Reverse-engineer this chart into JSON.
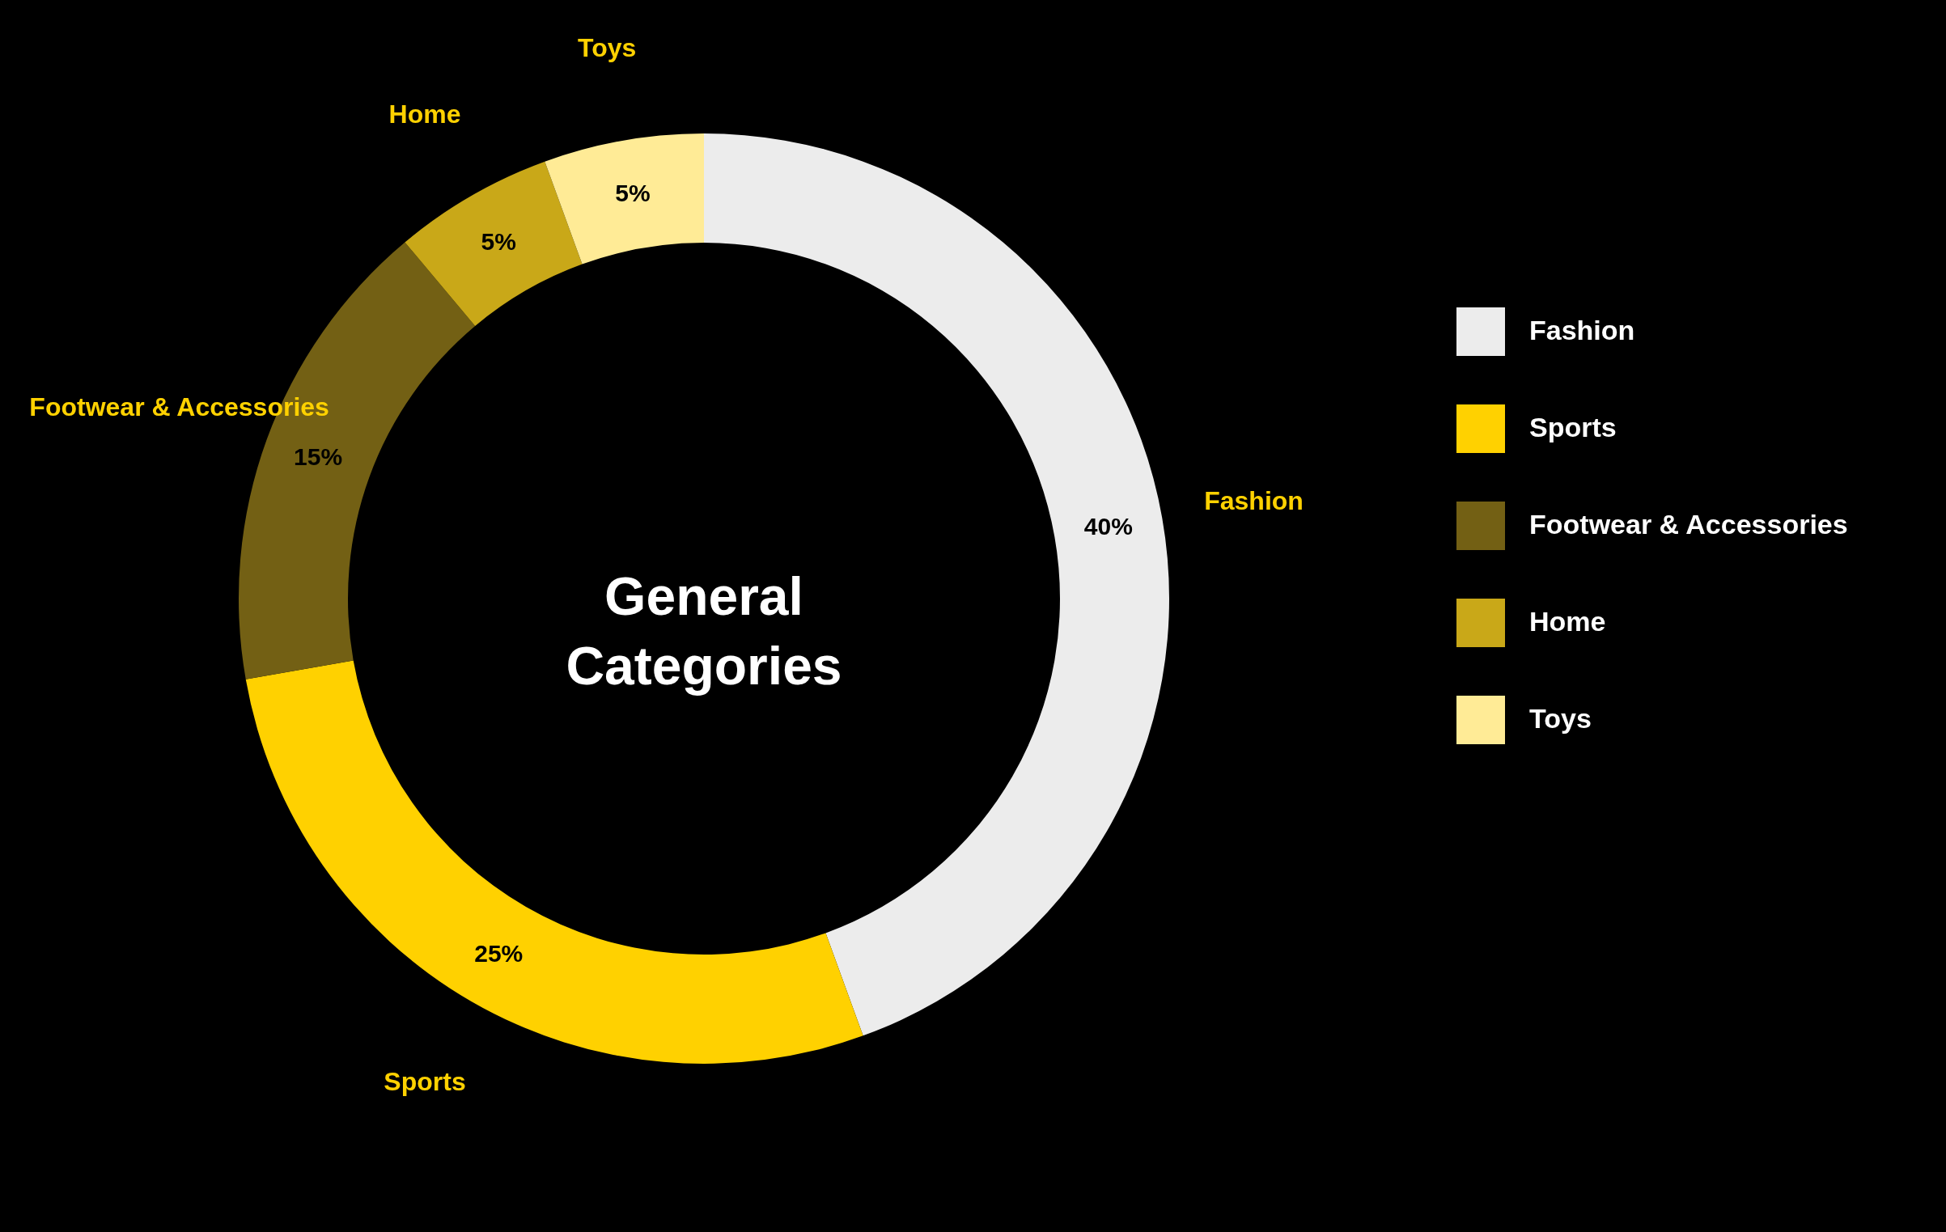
{
  "chart_data": {
    "type": "donut",
    "title": "General Categories",
    "categories": [
      "Fashion",
      "Sports",
      "Footwear & Accessories",
      "Home",
      "Toys"
    ],
    "values": [
      40,
      25,
      15,
      5,
      5
    ],
    "value_labels": [
      "40%",
      "25%",
      "15%",
      "5%",
      "5%"
    ],
    "colors": [
      "#ececec",
      "#ffd100",
      "#736014",
      "#c9a818",
      "#ffeb96"
    ],
    "legend": "right"
  }
}
